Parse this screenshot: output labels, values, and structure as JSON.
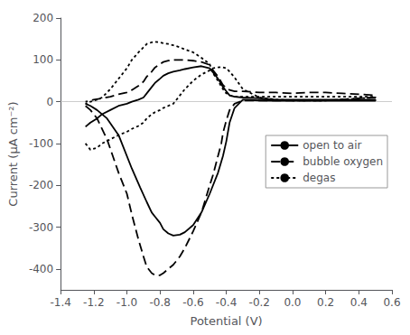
{
  "chart_data": {
    "type": "line",
    "xlabel": "Potential (V)",
    "ylabel": "Current (μA cm⁻²)",
    "xlim": [
      -1.4,
      0.6
    ],
    "ylim": [
      -450,
      200
    ],
    "xticks": [
      -1.4,
      -1.2,
      {
        "value": -1.0,
        "label": "-1.0"
      },
      -0.8,
      -0.6,
      -0.4,
      -0.2,
      {
        "value": 0.0,
        "label": "0.0"
      },
      0.2,
      0.4,
      0.6
    ],
    "yticks": [
      -400,
      -300,
      -200,
      -100,
      0,
      100,
      200
    ],
    "grid": false,
    "legend": "right",
    "series": [
      {
        "name": "open to air",
        "color": "#000000",
        "line_style": "solid",
        "x": [
          -1.25,
          -1.22,
          -1.18,
          -1.12,
          -1.05,
          -0.97,
          -0.92,
          -0.88,
          -0.85,
          -0.83,
          -0.8,
          -0.78,
          -0.75,
          -0.72,
          -0.68,
          -0.65,
          -0.6,
          -0.55,
          -0.5,
          -0.48,
          -0.45,
          -0.42,
          -0.4,
          -0.38,
          -0.35,
          -0.3,
          -0.2,
          -0.1,
          0.0,
          0.1,
          0.2,
          0.3,
          0.4,
          0.5,
          0.5,
          0.4,
          0.3,
          0.2,
          0.1,
          0.0,
          -0.1,
          -0.2,
          -0.3,
          -0.35,
          -0.38,
          -0.4,
          -0.42,
          -0.45,
          -0.48,
          -0.5,
          -0.55,
          -0.6,
          -0.65,
          -0.68,
          -0.72,
          -0.75,
          -0.78,
          -0.8,
          -0.83,
          -0.85,
          -0.88,
          -0.9,
          -0.93,
          -0.97,
          -1.0,
          -1.05,
          -1.1,
          -1.15,
          -1.18,
          -1.22,
          -1.25
        ],
        "values": [
          -5,
          -10,
          -20,
          -40,
          -80,
          -160,
          -205,
          -240,
          -265,
          -275,
          -290,
          -305,
          -315,
          -320,
          -318,
          -312,
          -295,
          -265,
          -220,
          -200,
          -170,
          -130,
          -95,
          -50,
          -15,
          5,
          3,
          2,
          2,
          2,
          2,
          2,
          2,
          2,
          5,
          5,
          5,
          5,
          5,
          5,
          5,
          8,
          10,
          12,
          15,
          25,
          35,
          55,
          70,
          80,
          85,
          82,
          78,
          75,
          72,
          68,
          62,
          55,
          45,
          35,
          20,
          10,
          5,
          0,
          -5,
          -10,
          -20,
          -30,
          -40,
          -50,
          -60
        ]
      },
      {
        "name": "bubble oxygen",
        "color": "#000000",
        "line_style": "dashed",
        "x": [
          -1.25,
          -1.22,
          -1.18,
          -1.12,
          -1.05,
          -1.0,
          -0.97,
          -0.93,
          -0.9,
          -0.88,
          -0.85,
          -0.83,
          -0.8,
          -0.78,
          -0.75,
          -0.72,
          -0.68,
          -0.65,
          -0.6,
          -0.55,
          -0.5,
          -0.48,
          -0.45,
          -0.43,
          -0.42,
          -0.4,
          -0.38,
          -0.35,
          -0.3,
          -0.2,
          -0.1,
          0.0,
          0.1,
          0.2,
          0.3,
          0.4,
          0.5,
          0.5,
          0.4,
          0.3,
          0.2,
          0.1,
          0.0,
          -0.1,
          -0.2,
          -0.3,
          -0.35,
          -0.38,
          -0.4,
          -0.42,
          -0.45,
          -0.48,
          -0.5,
          -0.55,
          -0.6,
          -0.65,
          -0.68,
          -0.72,
          -0.75,
          -0.78,
          -0.8,
          -0.83,
          -0.85,
          -0.88,
          -0.9,
          -0.93,
          -0.97,
          -1.0,
          -1.05,
          -1.1,
          -1.15,
          -1.2,
          -1.22,
          -1.25
        ],
        "values": [
          -10,
          -20,
          -40,
          -90,
          -170,
          -220,
          -270,
          -330,
          -370,
          -395,
          -410,
          -415,
          -415,
          -410,
          -400,
          -390,
          -370,
          -350,
          -310,
          -265,
          -200,
          -175,
          -130,
          -100,
          -75,
          -45,
          -20,
          -5,
          3,
          3,
          3,
          3,
          3,
          3,
          5,
          8,
          10,
          15,
          18,
          20,
          22,
          22,
          20,
          22,
          22,
          25,
          25,
          28,
          32,
          40,
          60,
          75,
          88,
          95,
          98,
          100,
          100,
          100,
          98,
          95,
          90,
          82,
          72,
          60,
          48,
          38,
          28,
          22,
          18,
          12,
          8,
          5,
          3,
          0
        ]
      },
      {
        "name": "degas",
        "color": "#000000",
        "line_style": "dotted",
        "x": [
          -1.25,
          -1.22,
          -1.18,
          -1.15,
          -1.1,
          -1.05,
          -1.0,
          -0.97,
          -0.93,
          -0.9,
          -0.88,
          -0.85,
          -0.83,
          -0.8,
          -0.78,
          -0.75,
          -0.72,
          -0.68,
          -0.65,
          -0.6,
          -0.55,
          -0.5,
          -0.48,
          -0.45,
          -0.43,
          -0.4,
          -0.38,
          -0.35,
          -0.3,
          -0.2,
          -0.1,
          0.0,
          0.1,
          0.2,
          0.3,
          0.4,
          0.5,
          0.5,
          0.4,
          0.3,
          0.2,
          0.1,
          0.0,
          -0.1,
          -0.2,
          -0.3,
          -0.35,
          -0.38,
          -0.4,
          -0.42,
          -0.45,
          -0.48,
          -0.5,
          -0.55,
          -0.6,
          -0.65,
          -0.68,
          -0.72,
          -0.75,
          -0.78,
          -0.8,
          -0.83,
          -0.85,
          -0.88,
          -0.9,
          -0.93,
          -0.97,
          -1.0,
          -1.05,
          -1.1,
          -1.15,
          -1.18,
          -1.22,
          -1.25
        ],
        "values": [
          -100,
          -115,
          -110,
          -100,
          -90,
          -80,
          -72,
          -65,
          -58,
          -50,
          -40,
          -30,
          -25,
          -20,
          -15,
          -10,
          -5,
          15,
          30,
          50,
          65,
          75,
          80,
          82,
          83,
          80,
          72,
          58,
          30,
          10,
          5,
          3,
          3,
          3,
          5,
          8,
          10,
          12,
          12,
          12,
          12,
          12,
          12,
          12,
          12,
          12,
          12,
          15,
          20,
          30,
          50,
          68,
          90,
          105,
          118,
          125,
          130,
          135,
          138,
          140,
          142,
          143,
          142,
          138,
          130,
          118,
          100,
          80,
          55,
          30,
          10,
          5,
          0,
          -5
        ]
      }
    ]
  }
}
